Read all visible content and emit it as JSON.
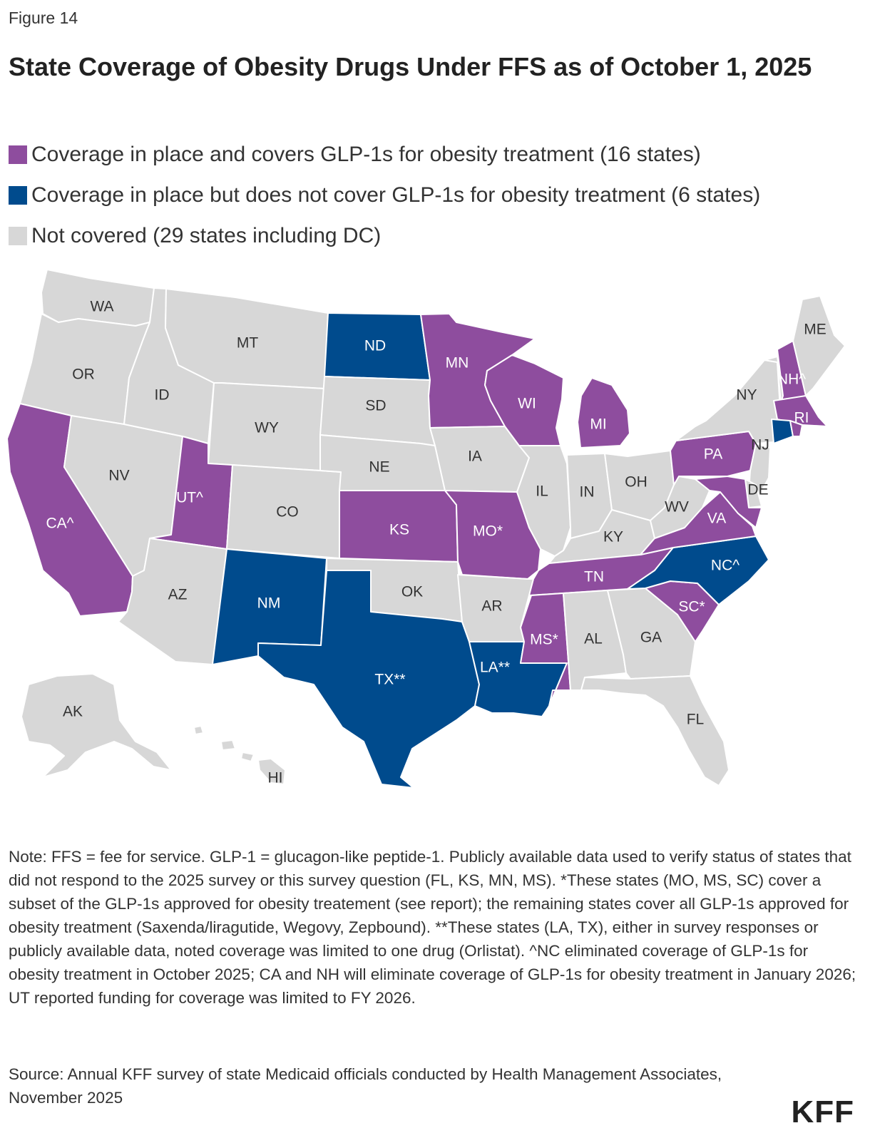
{
  "figure_label": "Figure 14",
  "title": "State Coverage of Obesity Drugs Under FFS as of October 1, 2025",
  "colors": {
    "covers_glp1": "#8e4d9e",
    "no_glp1": "#004b8d",
    "not_covered": "#d7d7d7",
    "label_dark": "#333333",
    "label_light": "#ffffff"
  },
  "legend": [
    {
      "key": "covers_glp1",
      "label": "Coverage in place and covers GLP-1s for obesity treatment (16 states)"
    },
    {
      "key": "no_glp1",
      "label": "Coverage in place but does not cover GLP-1s for obesity treatment (6 states)"
    },
    {
      "key": "not_covered",
      "label": "Not covered (29 states including DC)"
    }
  ],
  "states": [
    {
      "id": "WA",
      "label": "WA",
      "status": "not_covered"
    },
    {
      "id": "OR",
      "label": "OR",
      "status": "not_covered"
    },
    {
      "id": "CA",
      "label": "CA^",
      "status": "covers_glp1"
    },
    {
      "id": "NV",
      "label": "NV",
      "status": "not_covered"
    },
    {
      "id": "ID",
      "label": "ID",
      "status": "not_covered"
    },
    {
      "id": "MT",
      "label": "MT",
      "status": "not_covered"
    },
    {
      "id": "WY",
      "label": "WY",
      "status": "not_covered"
    },
    {
      "id": "UT",
      "label": "UT^",
      "status": "covers_glp1"
    },
    {
      "id": "AZ",
      "label": "AZ",
      "status": "not_covered"
    },
    {
      "id": "CO",
      "label": "CO",
      "status": "not_covered"
    },
    {
      "id": "NM",
      "label": "NM",
      "status": "no_glp1"
    },
    {
      "id": "ND",
      "label": "ND",
      "status": "no_glp1"
    },
    {
      "id": "SD",
      "label": "SD",
      "status": "not_covered"
    },
    {
      "id": "NE",
      "label": "NE",
      "status": "not_covered"
    },
    {
      "id": "KS",
      "label": "KS",
      "status": "covers_glp1"
    },
    {
      "id": "OK",
      "label": "OK",
      "status": "not_covered"
    },
    {
      "id": "TX",
      "label": "TX**",
      "status": "no_glp1"
    },
    {
      "id": "MN",
      "label": "MN",
      "status": "covers_glp1"
    },
    {
      "id": "IA",
      "label": "IA",
      "status": "not_covered"
    },
    {
      "id": "MO",
      "label": "MO*",
      "status": "covers_glp1"
    },
    {
      "id": "AR",
      "label": "AR",
      "status": "not_covered"
    },
    {
      "id": "LA",
      "label": "LA**",
      "status": "no_glp1"
    },
    {
      "id": "WI",
      "label": "WI",
      "status": "covers_glp1"
    },
    {
      "id": "IL",
      "label": "IL",
      "status": "not_covered"
    },
    {
      "id": "MI",
      "label": "MI",
      "status": "covers_glp1"
    },
    {
      "id": "IN",
      "label": "IN",
      "status": "not_covered"
    },
    {
      "id": "OH",
      "label": "OH",
      "status": "not_covered"
    },
    {
      "id": "KY",
      "label": "KY",
      "status": "not_covered"
    },
    {
      "id": "TN",
      "label": "TN",
      "status": "covers_glp1"
    },
    {
      "id": "MS",
      "label": "MS*",
      "status": "covers_glp1"
    },
    {
      "id": "AL",
      "label": "AL",
      "status": "not_covered"
    },
    {
      "id": "GA",
      "label": "GA",
      "status": "not_covered"
    },
    {
      "id": "FL",
      "label": "FL",
      "status": "not_covered"
    },
    {
      "id": "SC",
      "label": "SC*",
      "status": "covers_glp1"
    },
    {
      "id": "NC",
      "label": "NC^",
      "status": "no_glp1"
    },
    {
      "id": "VA",
      "label": "VA",
      "status": "covers_glp1"
    },
    {
      "id": "WV",
      "label": "WV",
      "status": "not_covered"
    },
    {
      "id": "PA",
      "label": "PA",
      "status": "covers_glp1"
    },
    {
      "id": "NY",
      "label": "NY",
      "status": "not_covered"
    },
    {
      "id": "NJ",
      "label": "NJ",
      "status": "not_covered"
    },
    {
      "id": "DE",
      "label": "DE",
      "status": "not_covered"
    },
    {
      "id": "MD",
      "label": "",
      "status": "covers_glp1"
    },
    {
      "id": "CT",
      "label": "",
      "status": "no_glp1"
    },
    {
      "id": "RI",
      "label": "RI",
      "status": "covers_glp1"
    },
    {
      "id": "MA",
      "label": "",
      "status": "covers_glp1"
    },
    {
      "id": "VT",
      "label": "",
      "status": "not_covered"
    },
    {
      "id": "NH",
      "label": "NH^",
      "status": "covers_glp1"
    },
    {
      "id": "ME",
      "label": "ME",
      "status": "not_covered"
    },
    {
      "id": "AK",
      "label": "AK",
      "status": "not_covered"
    },
    {
      "id": "HI",
      "label": "HI",
      "status": "not_covered"
    }
  ],
  "note": "Note: FFS = fee for service. GLP-1 = glucagon-like peptide-1. Publicly available data used to verify status of states that did not respond to the 2025 survey or this survey question (FL, KS, MN, MS). *These states (MO, MS, SC) cover a subset of the GLP-1s approved for obesity treatement (see report); the remaining states cover all GLP-1s approved for obesity treatment (Saxenda/liragutide, Wegovy, Zepbound). **These states (LA, TX), either in survey responses or publicly available data, noted coverage was limited to one drug (Orlistat). ^NC eliminated coverage of GLP-1s for obesity treatment in October 2025; CA and NH will eliminate coverage of GLP-1s for obesity treatment in January 2026; UT reported funding for coverage was limited to FY 2026.",
  "source": "Source: Annual KFF survey of state Medicaid officials conducted by Health Management Associates, November 2025",
  "logo_text": "KFF"
}
